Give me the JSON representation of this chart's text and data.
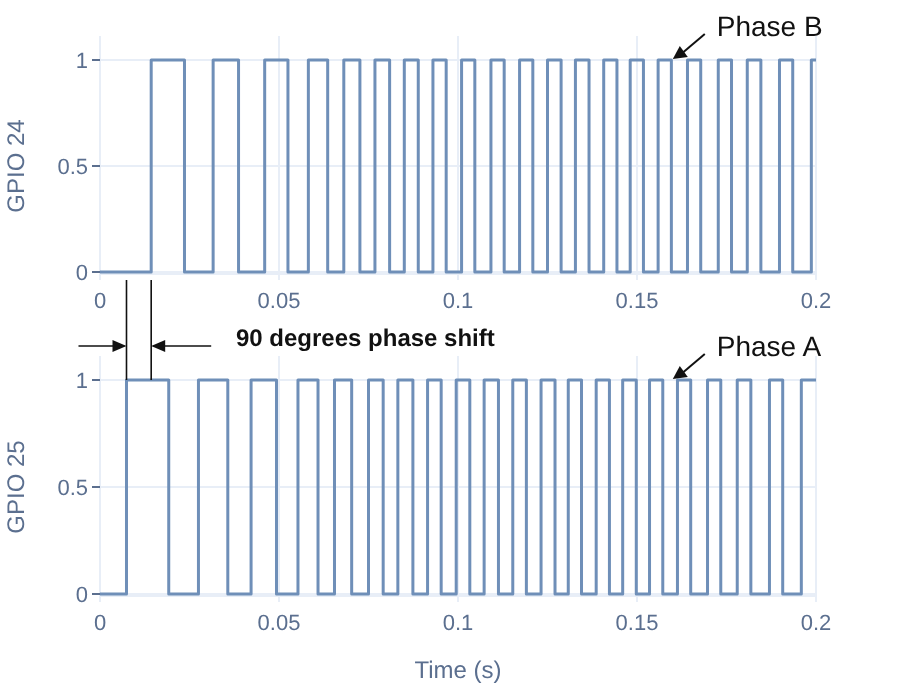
{
  "chart_data": [
    {
      "type": "step",
      "ylabel": "GPIO 24",
      "xlim": [
        0,
        0.2
      ],
      "xticks": [
        0,
        0.05,
        0.1,
        0.15,
        0.2
      ],
      "ylim": [
        0,
        1
      ],
      "yticks": [
        0,
        0.5,
        1
      ],
      "grid": true,
      "line_style": "solid",
      "series": [
        {
          "color": "#6f8fb8",
          "x": [
            0,
            0.0143,
            0.0236,
            0.0316,
            0.0387,
            0.046,
            0.0525,
            0.0582,
            0.0636,
            0.0681,
            0.0726,
            0.0768,
            0.0809,
            0.085,
            0.0889,
            0.093,
            0.0967,
            0.101,
            0.1047,
            0.1092,
            0.1129,
            0.1172,
            0.1209,
            0.125,
            0.1288,
            0.1328,
            0.1366,
            0.1407,
            0.1444,
            0.1481,
            0.1518,
            0.1559,
            0.1596,
            0.1641,
            0.1678,
            0.1727,
            0.1764,
            0.1808,
            0.1846,
            0.1898,
            0.1935,
            0.1987,
            0.2
          ],
          "values": [
            0,
            1,
            0,
            1,
            0,
            1,
            0,
            1,
            0,
            1,
            0,
            1,
            0,
            1,
            0,
            1,
            0,
            1,
            0,
            1,
            0,
            1,
            0,
            1,
            0,
            1,
            0,
            1,
            0,
            1,
            0,
            1,
            0,
            1,
            0,
            1,
            0,
            1,
            0,
            1,
            0,
            1,
            1
          ]
        }
      ],
      "annotations": [
        {
          "text": "Phase B",
          "x": 0.16,
          "y": 1
        }
      ]
    },
    {
      "type": "step",
      "ylabel": "GPIO 25",
      "xlabel": "Time (s)",
      "xlim": [
        0,
        0.2
      ],
      "xticks": [
        0,
        0.05,
        0.1,
        0.15,
        0.2
      ],
      "ylim": [
        0,
        1
      ],
      "yticks": [
        0,
        0.5,
        1
      ],
      "grid": true,
      "line_style": "solid",
      "series": [
        {
          "color": "#6f8fb8",
          "x": [
            0,
            0.0074,
            0.0192,
            0.0275,
            0.0357,
            0.0422,
            0.0493,
            0.0553,
            0.0609,
            0.0655,
            0.0703,
            0.075,
            0.0791,
            0.0832,
            0.0874,
            0.0915,
            0.0953,
            0.0995,
            0.1033,
            0.1073,
            0.1113,
            0.1153,
            0.1191,
            0.1232,
            0.1271,
            0.1308,
            0.1345,
            0.1386,
            0.1423,
            0.146,
            0.1498,
            0.1535,
            0.1572,
            0.1613,
            0.165,
            0.1697,
            0.1734,
            0.178,
            0.1818,
            0.187,
            0.1907,
            0.1959,
            0.2
          ],
          "values": [
            0,
            1,
            0,
            1,
            0,
            1,
            0,
            1,
            0,
            1,
            0,
            1,
            0,
            1,
            0,
            1,
            0,
            1,
            0,
            1,
            0,
            1,
            0,
            1,
            0,
            1,
            0,
            1,
            0,
            1,
            0,
            1,
            0,
            1,
            0,
            1,
            0,
            1,
            0,
            1,
            0,
            1,
            1
          ]
        }
      ],
      "annotations": [
        "90 degrees phase shift",
        {
          "text": "Phase A",
          "x": 0.16,
          "y": 1
        }
      ]
    }
  ]
}
